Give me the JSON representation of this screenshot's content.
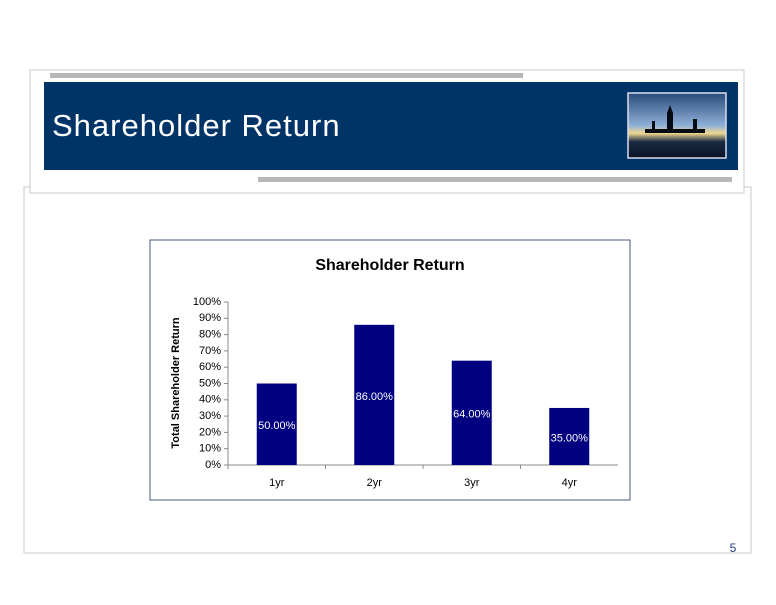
{
  "slide_title": "Shareholder Return",
  "page_number": "5",
  "chart_data": {
    "type": "bar",
    "title": "Shareholder Return",
    "y_label": "Total Shareholder Return",
    "categories": [
      "1yr",
      "2yr",
      "3yr",
      "4yr"
    ],
    "values": [
      50,
      86,
      64,
      35
    ],
    "value_labels": [
      "50.00%",
      "86.00%",
      "64.00%",
      "35.00%"
    ],
    "color": "#000080",
    "ylim": [
      0,
      100
    ],
    "yticks": [
      {
        "value": 0,
        "label": "0%"
      },
      {
        "value": 10,
        "label": "10%"
      },
      {
        "value": 20,
        "label": "20%"
      },
      {
        "value": 30,
        "label": "30%"
      },
      {
        "value": 40,
        "label": "40%"
      },
      {
        "value": 50,
        "label": "50%"
      },
      {
        "value": 60,
        "label": "60%"
      },
      {
        "value": 70,
        "label": "70%"
      },
      {
        "value": 80,
        "label": "80%"
      },
      {
        "value": 90,
        "label": "90%"
      },
      {
        "value": 100,
        "label": "100%"
      }
    ]
  }
}
